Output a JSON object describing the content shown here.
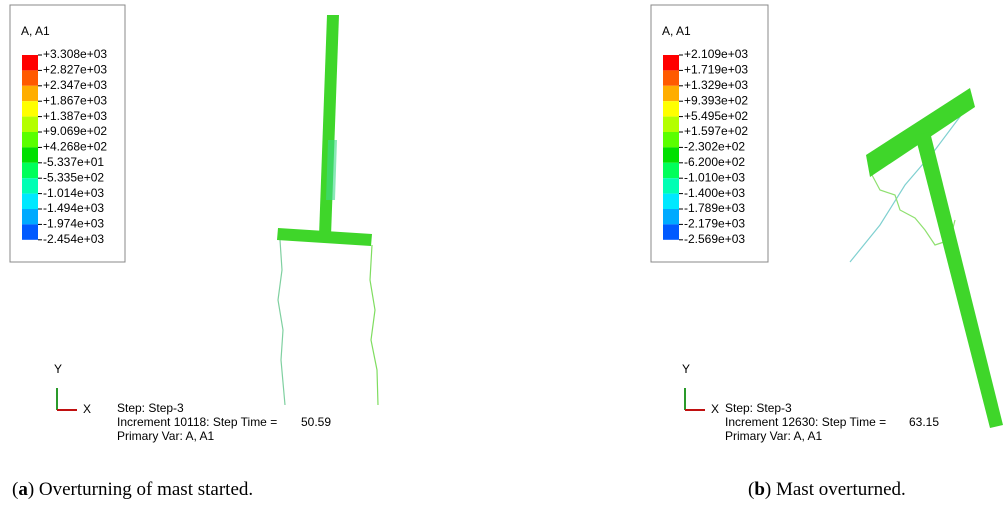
{
  "panels": [
    {
      "legend": {
        "title": "A, A1",
        "values": [
          "+3.308e+03",
          "+2.827e+03",
          "+2.347e+03",
          "+1.867e+03",
          "+1.387e+03",
          "+9.069e+02",
          "+4.268e+02",
          "-5.337e+01",
          "-5.335e+02",
          "-1.014e+03",
          "-1.494e+03",
          "-1.974e+03",
          "-2.454e+03"
        ]
      },
      "triad": {
        "y": "Y",
        "x": "X"
      },
      "info": {
        "step": "Step: Step-3",
        "increment": "Increment  10118: Step Time =",
        "time": "50.59",
        "var": "Primary Var: A, A1"
      },
      "caption": {
        "open": "(",
        "label": "a",
        "text": ") Overturning of mast started."
      }
    },
    {
      "legend": {
        "title": "A, A1",
        "values": [
          "+2.109e+03",
          "+1.719e+03",
          "+1.329e+03",
          "+9.393e+02",
          "+5.495e+02",
          "+1.597e+02",
          "-2.302e+02",
          "-6.200e+02",
          "-1.010e+03",
          "-1.400e+03",
          "-1.789e+03",
          "-2.179e+03",
          "-2.569e+03"
        ]
      },
      "triad": {
        "y": "Y",
        "x": "X"
      },
      "info": {
        "step": "Step: Step-3",
        "increment": "Increment  12630: Step Time =",
        "time": "63.15",
        "var": "Primary Var: A, A1"
      },
      "caption": {
        "open": "(",
        "label": "b",
        "text": ") Mast overturned."
      }
    }
  ]
}
